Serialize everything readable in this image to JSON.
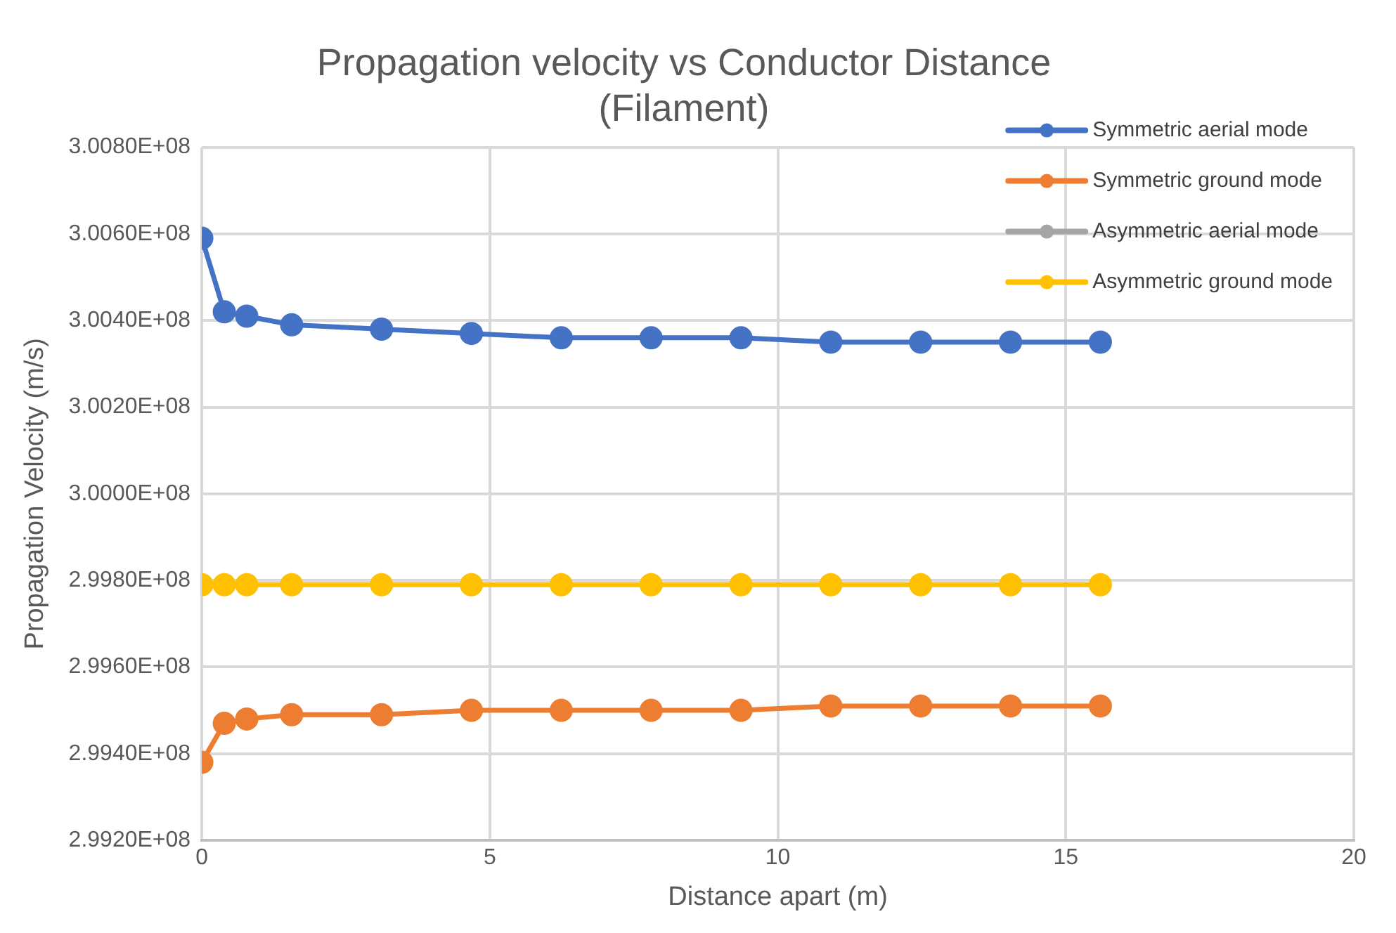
{
  "chart_data": {
    "type": "line",
    "title": "Propagation velocity vs Conductor Distance (Filament)",
    "xlabel": "Distance apart (m)",
    "ylabel": "Propagation Velocity (m/s)",
    "x": [
      0,
      0.39,
      0.78,
      1.56,
      3.12,
      4.68,
      6.24,
      7.8,
      9.36,
      10.92,
      12.48,
      14.04,
      15.6
    ],
    "series": [
      {
        "name": "Symmetric aerial mode",
        "color": "#4472c4",
        "values": [
          300590000,
          300420000,
          300410000,
          300390000,
          300380000,
          300370000,
          300360000,
          300360000,
          300360000,
          300350000,
          300350000,
          300350000,
          300350000
        ]
      },
      {
        "name": "Symmetric ground mode",
        "color": "#ed7d31",
        "values": [
          299380000,
          299470000,
          299480000,
          299490000,
          299490000,
          299500000,
          299500000,
          299500000,
          299500000,
          299510000,
          299510000,
          299510000,
          299510000
        ]
      },
      {
        "name": "Asymmetric aerial mode",
        "color": "#a5a5a5",
        "values": [
          null,
          null,
          null,
          null,
          null,
          null,
          null,
          null,
          null,
          null,
          null,
          null,
          null
        ]
      },
      {
        "name": "Asymmetric ground mode",
        "color": "#ffc000",
        "values": [
          299790000,
          299790000,
          299790000,
          299790000,
          299790000,
          299790000,
          299790000,
          299790000,
          299790000,
          299790000,
          299790000,
          299790000,
          299790000
        ]
      }
    ],
    "xlim": [
      0,
      20
    ],
    "xticks": [
      0,
      5,
      10,
      15,
      20
    ],
    "ylim": [
      299200000,
      300800000
    ],
    "yticks": [
      {
        "value": 299200000,
        "label": "2.9920E+08"
      },
      {
        "value": 299400000,
        "label": "2.9940E+08"
      },
      {
        "value": 299600000,
        "label": "2.9960E+08"
      },
      {
        "value": 299800000,
        "label": "2.9980E+08"
      },
      {
        "value": 300000000,
        "label": "3.0000E+08"
      },
      {
        "value": 300200000,
        "label": "3.0020E+08"
      },
      {
        "value": 300400000,
        "label": "3.0040E+08"
      },
      {
        "value": 300600000,
        "label": "3.0060E+08"
      },
      {
        "value": 300800000,
        "label": "3.0080E+08"
      }
    ],
    "grid": true,
    "legend": "top right",
    "marker": "circle",
    "line_style": "solid"
  }
}
